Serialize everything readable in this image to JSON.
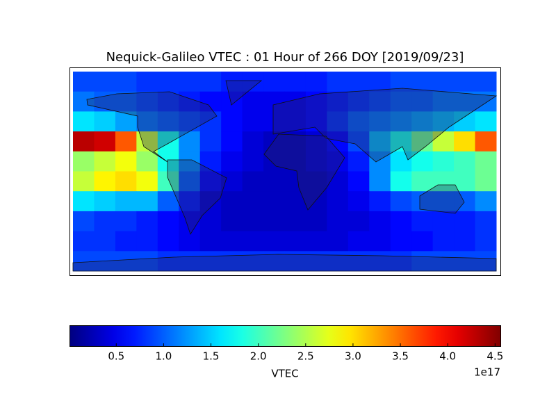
{
  "chart_data": {
    "type": "heatmap",
    "title": "Nequick-Galileo VTEC : 01 Hour of 266 DOY [2019/09/23]",
    "colormap": "jet",
    "clim": [
      0.01,
      4.56
    ],
    "colorbar_label": "VTEC",
    "colorbar_offset": "1e17",
    "colorbar_ticks": [
      0.5,
      {
        "value": 1,
        "label": "1.0"
      },
      1.5,
      {
        "value": 2,
        "label": "2.0"
      },
      2.5,
      {
        "value": 3,
        "label": "3.0"
      },
      3.5,
      {
        "value": 4,
        "label": "4.0"
      },
      4.5
    ],
    "values": [
      [
        0.9,
        0.9,
        0.9,
        0.8,
        0.8,
        0.8,
        0.8,
        0.7,
        0.7,
        0.7,
        0.7,
        0.7,
        0.8,
        0.8,
        0.8,
        0.9,
        0.9,
        0.9,
        0.9,
        0.9
      ],
      [
        1.1,
        1.0,
        1.0,
        0.9,
        0.8,
        0.7,
        0.6,
        0.6,
        0.5,
        0.5,
        0.5,
        0.6,
        0.7,
        0.8,
        0.9,
        1.0,
        1.0,
        1.1,
        1.1,
        1.1
      ],
      [
        1.6,
        1.5,
        1.3,
        1.1,
        1.0,
        0.9,
        0.8,
        0.6,
        0.5,
        0.5,
        0.5,
        0.6,
        0.8,
        1.0,
        1.1,
        1.2,
        1.3,
        1.4,
        1.5,
        1.6
      ],
      [
        4.3,
        4.2,
        3.6,
        2.6,
        1.8,
        1.2,
        0.8,
        0.6,
        0.4,
        0.3,
        0.3,
        0.4,
        0.6,
        0.9,
        1.4,
        1.8,
        2.2,
        2.6,
        3.0,
        3.6
      ],
      [
        2.4,
        2.6,
        2.8,
        2.4,
        1.8,
        1.2,
        0.7,
        0.5,
        0.4,
        0.3,
        0.3,
        0.4,
        0.5,
        0.7,
        1.2,
        1.6,
        1.8,
        1.9,
        2.0,
        2.2
      ],
      [
        2.6,
        2.9,
        3.0,
        2.8,
        2.0,
        1.0,
        0.6,
        0.4,
        0.3,
        0.3,
        0.3,
        0.3,
        0.4,
        0.6,
        1.2,
        1.8,
        2.0,
        2.0,
        2.0,
        2.2
      ],
      [
        1.6,
        1.5,
        1.4,
        1.4,
        1.0,
        0.7,
        0.4,
        0.3,
        0.3,
        0.3,
        0.3,
        0.3,
        0.4,
        0.5,
        0.7,
        0.9,
        1.0,
        1.0,
        1.0,
        1.2
      ],
      [
        0.9,
        0.8,
        0.8,
        0.7,
        0.6,
        0.5,
        0.4,
        0.3,
        0.3,
        0.3,
        0.3,
        0.3,
        0.4,
        0.4,
        0.5,
        0.6,
        0.7,
        0.7,
        0.7,
        0.8
      ],
      [
        0.8,
        0.8,
        0.7,
        0.7,
        0.6,
        0.5,
        0.4,
        0.4,
        0.4,
        0.4,
        0.4,
        0.4,
        0.4,
        0.5,
        0.5,
        0.6,
        0.6,
        0.7,
        0.7,
        0.8
      ],
      [
        0.9,
        0.9,
        0.9,
        0.9,
        0.8,
        0.8,
        0.8,
        0.8,
        0.8,
        0.8,
        0.8,
        0.8,
        0.8,
        0.8,
        0.8,
        0.8,
        0.9,
        0.9,
        0.9,
        0.9
      ]
    ]
  }
}
